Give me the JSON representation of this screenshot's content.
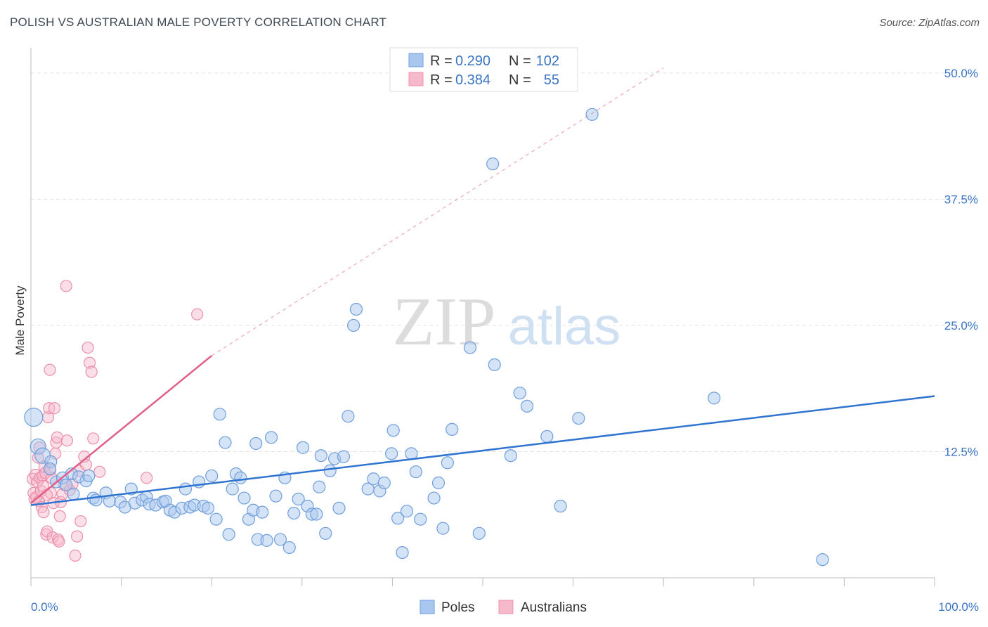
{
  "header": {
    "title": "POLISH VS AUSTRALIAN MALE POVERTY CORRELATION CHART",
    "source": "Source: ZipAtlas.com"
  },
  "watermark": {
    "zip": "ZIP",
    "atlas": "atlas"
  },
  "legend": {
    "rows": [
      {
        "r_label": "R =",
        "r_value": "0.290",
        "n_label": "N =",
        "n_value": "102"
      },
      {
        "r_label": "R =",
        "r_value": "0.384",
        "n_label": "N =",
        "n_value": "55"
      }
    ]
  },
  "bottom_legend": {
    "poles": "Poles",
    "australians": "Australians"
  },
  "colors": {
    "poles_fill": "#a9c7ee",
    "poles_stroke": "#6f9fdc",
    "poles_line": "#2f74d0",
    "aus_fill": "#f6b8cb",
    "aus_stroke": "#ec8fab",
    "aus_line": "#e0608a",
    "tick_label": "#3a74c4",
    "grid": "#e3e3e3"
  },
  "chart_data": {
    "type": "scatter",
    "title": "POLISH VS AUSTRALIAN MALE POVERTY CORRELATION CHART",
    "xlabel": "",
    "ylabel": "Male Poverty",
    "xlim": [
      0,
      100
    ],
    "ylim": [
      0,
      52.5
    ],
    "y_ticks": [
      12.5,
      25.0,
      37.5,
      50.0
    ],
    "y_tick_labels": [
      "12.5%",
      "25.0%",
      "37.5%",
      "50.0%"
    ],
    "x_tick_labels": [
      "0.0%",
      "100.0%"
    ],
    "grid": "horizontal dashed",
    "legend_position": "top-center",
    "series": [
      {
        "name": "Poles",
        "r": 0.29,
        "n": 102,
        "trend": {
          "x": [
            0,
            100
          ],
          "y": [
            7.2,
            18.0
          ],
          "dashed_extension": false
        },
        "points": [
          [
            0.3,
            15.9
          ],
          [
            0.8,
            13.0
          ],
          [
            1.3,
            12.1
          ],
          [
            2.2,
            11.5
          ],
          [
            2.8,
            9.5
          ],
          [
            3.5,
            9.9
          ],
          [
            4.5,
            10.3
          ],
          [
            4.7,
            8.3
          ],
          [
            5.3,
            10.0
          ],
          [
            6.1,
            9.6
          ],
          [
            6.9,
            7.9
          ],
          [
            7.2,
            7.7
          ],
          [
            8.3,
            8.4
          ],
          [
            8.7,
            7.6
          ],
          [
            9.9,
            7.5
          ],
          [
            10.4,
            7.0
          ],
          [
            11.1,
            8.8
          ],
          [
            11.5,
            7.4
          ],
          [
            12.3,
            7.7
          ],
          [
            12.8,
            8.0
          ],
          [
            13.1,
            7.3
          ],
          [
            13.8,
            7.2
          ],
          [
            14.6,
            7.5
          ],
          [
            14.9,
            7.6
          ],
          [
            15.4,
            6.7
          ],
          [
            15.9,
            6.5
          ],
          [
            16.7,
            6.9
          ],
          [
            17.1,
            8.8
          ],
          [
            17.6,
            7.0
          ],
          [
            18.1,
            7.2
          ],
          [
            18.6,
            9.5
          ],
          [
            19.1,
            7.1
          ],
          [
            19.6,
            6.9
          ],
          [
            20.0,
            10.1
          ],
          [
            20.5,
            5.8
          ],
          [
            20.9,
            16.2
          ],
          [
            21.5,
            13.4
          ],
          [
            21.9,
            4.3
          ],
          [
            22.3,
            8.8
          ],
          [
            22.7,
            10.3
          ],
          [
            23.2,
            9.9
          ],
          [
            23.6,
            7.9
          ],
          [
            24.1,
            5.8
          ],
          [
            24.6,
            6.7
          ],
          [
            25.1,
            3.8
          ],
          [
            25.6,
            6.5
          ],
          [
            26.1,
            3.7
          ],
          [
            26.6,
            13.9
          ],
          [
            27.1,
            8.1
          ],
          [
            27.6,
            3.8
          ],
          [
            28.1,
            9.9
          ],
          [
            28.6,
            3.0
          ],
          [
            29.1,
            6.4
          ],
          [
            29.6,
            7.8
          ],
          [
            30.1,
            12.9
          ],
          [
            30.6,
            7.1
          ],
          [
            31.1,
            6.3
          ],
          [
            31.6,
            6.3
          ],
          [
            32.1,
            12.1
          ],
          [
            32.6,
            4.4
          ],
          [
            33.1,
            10.6
          ],
          [
            33.6,
            11.8
          ],
          [
            34.1,
            6.9
          ],
          [
            34.6,
            12.0
          ],
          [
            35.1,
            16.0
          ],
          [
            35.7,
            25.0
          ],
          [
            36.0,
            26.6
          ],
          [
            37.3,
            8.8
          ],
          [
            37.9,
            9.8
          ],
          [
            38.6,
            8.6
          ],
          [
            39.1,
            9.4
          ],
          [
            39.9,
            12.3
          ],
          [
            40.1,
            14.6
          ],
          [
            40.6,
            5.9
          ],
          [
            41.1,
            2.5
          ],
          [
            41.6,
            6.6
          ],
          [
            42.1,
            12.3
          ],
          [
            42.6,
            10.5
          ],
          [
            43.1,
            5.8
          ],
          [
            44.6,
            7.9
          ],
          [
            45.1,
            9.4
          ],
          [
            45.6,
            4.9
          ],
          [
            46.6,
            14.7
          ],
          [
            48.6,
            22.8
          ],
          [
            49.6,
            4.4
          ],
          [
            51.1,
            41.0
          ],
          [
            51.3,
            21.1
          ],
          [
            53.1,
            12.1
          ],
          [
            54.1,
            18.3
          ],
          [
            54.9,
            17.0
          ],
          [
            57.1,
            14.0
          ],
          [
            58.6,
            7.1
          ],
          [
            60.6,
            15.8
          ],
          [
            62.1,
            45.9
          ],
          [
            75.6,
            17.8
          ],
          [
            87.6,
            1.8
          ],
          [
            2.1,
            10.8
          ],
          [
            3.9,
            9.2
          ],
          [
            6.4,
            10.1
          ],
          [
            24.9,
            13.3
          ],
          [
            31.9,
            9.0
          ],
          [
            46.1,
            11.4
          ]
        ]
      },
      {
        "name": "Australians",
        "r": 0.384,
        "n": 55,
        "trend": {
          "x": [
            0,
            20
          ],
          "y": [
            7.4,
            22.0
          ],
          "dashed_extension_to": [
            70,
            50.5
          ]
        },
        "points": [
          [
            0.2,
            9.8
          ],
          [
            0.3,
            8.4
          ],
          [
            0.4,
            7.8
          ],
          [
            0.5,
            10.2
          ],
          [
            0.6,
            8.0
          ],
          [
            0.7,
            9.5
          ],
          [
            0.8,
            11.9
          ],
          [
            0.9,
            7.6
          ],
          [
            1.0,
            9.9
          ],
          [
            1.1,
            8.6
          ],
          [
            1.2,
            7.0
          ],
          [
            1.3,
            10.1
          ],
          [
            1.4,
            6.5
          ],
          [
            1.5,
            11.0
          ],
          [
            1.6,
            10.4
          ],
          [
            1.7,
            4.3
          ],
          [
            1.8,
            4.6
          ],
          [
            1.9,
            15.9
          ],
          [
            2.0,
            16.8
          ],
          [
            2.1,
            20.6
          ],
          [
            2.2,
            8.4
          ],
          [
            2.3,
            9.9
          ],
          [
            2.4,
            4.0
          ],
          [
            2.5,
            7.4
          ],
          [
            2.6,
            16.8
          ],
          [
            2.7,
            12.3
          ],
          [
            2.8,
            13.4
          ],
          [
            2.9,
            13.9
          ],
          [
            3.0,
            3.8
          ],
          [
            3.1,
            3.6
          ],
          [
            3.2,
            6.1
          ],
          [
            3.3,
            7.5
          ],
          [
            3.5,
            8.3
          ],
          [
            3.7,
            9.2
          ],
          [
            3.9,
            28.9
          ],
          [
            4.0,
            13.6
          ],
          [
            4.3,
            8.7
          ],
          [
            4.6,
            9.3
          ],
          [
            4.9,
            2.2
          ],
          [
            5.1,
            4.1
          ],
          [
            5.3,
            10.6
          ],
          [
            5.5,
            5.6
          ],
          [
            5.9,
            12.0
          ],
          [
            6.1,
            11.2
          ],
          [
            6.3,
            22.8
          ],
          [
            6.5,
            21.3
          ],
          [
            6.7,
            20.4
          ],
          [
            6.9,
            13.8
          ],
          [
            7.6,
            10.5
          ],
          [
            12.8,
            9.9
          ],
          [
            18.4,
            26.1
          ],
          [
            1.35,
            9.1
          ],
          [
            2.15,
            10.7
          ],
          [
            0.95,
            12.9
          ],
          [
            1.75,
            8.2
          ]
        ]
      }
    ]
  }
}
